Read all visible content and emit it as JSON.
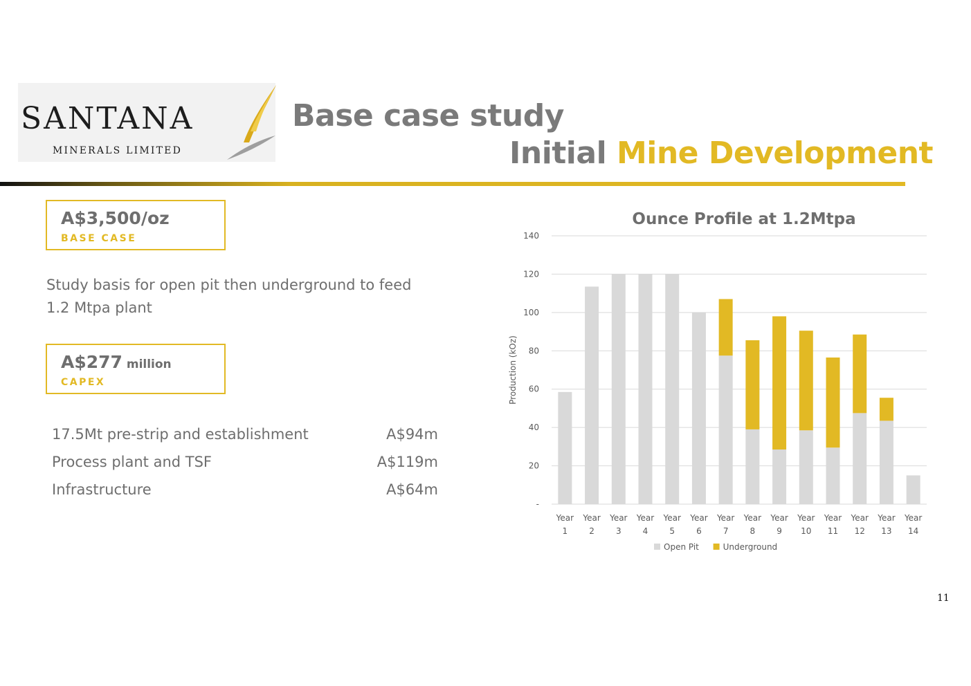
{
  "logo": {
    "name": "SANTANA",
    "subtitle": "MINERALS LIMITED"
  },
  "header": {
    "title": "Base case study",
    "subtitle_part1": "Initial ",
    "subtitle_part2": "Mine Development"
  },
  "kpis": [
    {
      "value": "A$3,500/oz",
      "unit": "",
      "label": "BASE CASE"
    },
    {
      "value": "A$277",
      "unit": " million",
      "label": "CAPEX"
    }
  ],
  "basis_text": "Study basis for open pit then underground to feed 1.2 Mtpa plant",
  "costs": [
    {
      "label": "17.5Mt pre-strip and establishment",
      "amount": "A$94m"
    },
    {
      "label": "Process plant and TSF",
      "amount": "A$119m"
    },
    {
      "label": "Infrastructure",
      "amount": "A$64m"
    }
  ],
  "page_number": "11",
  "colors": {
    "accent": "#e2b924",
    "open_pit": "#d9d9d9",
    "text_gray": "#6e6e6e"
  },
  "chart_data": {
    "type": "bar",
    "stacked": true,
    "title": "Ounce Profile at 1.2Mtpa",
    "xlabel": "",
    "ylabel": "Production (kOz)",
    "ylim": [
      0,
      140
    ],
    "yticks": [
      0,
      20,
      40,
      60,
      80,
      100,
      120,
      140
    ],
    "ytick_labels": [
      "-",
      "20",
      "40",
      "60",
      "80",
      "100",
      "120",
      "140"
    ],
    "grid": true,
    "legend_position": "bottom",
    "categories": [
      "Year 1",
      "Year 2",
      "Year 3",
      "Year 4",
      "Year 5",
      "Year 6",
      "Year 7",
      "Year 8",
      "Year 9",
      "Year 10",
      "Year 11",
      "Year 12",
      "Year 13",
      "Year 14"
    ],
    "series": [
      {
        "name": "Open Pit",
        "color": "#d9d9d9",
        "values": [
          58.5,
          113.5,
          120,
          120,
          120,
          100,
          77.5,
          39,
          28.5,
          38.5,
          29.5,
          47.5,
          43.5,
          15
        ]
      },
      {
        "name": "Underground",
        "color": "#e2b924",
        "values": [
          0,
          0,
          0,
          0,
          0,
          0,
          29.5,
          46.5,
          69.5,
          52,
          47,
          41,
          12,
          0
        ]
      }
    ]
  }
}
